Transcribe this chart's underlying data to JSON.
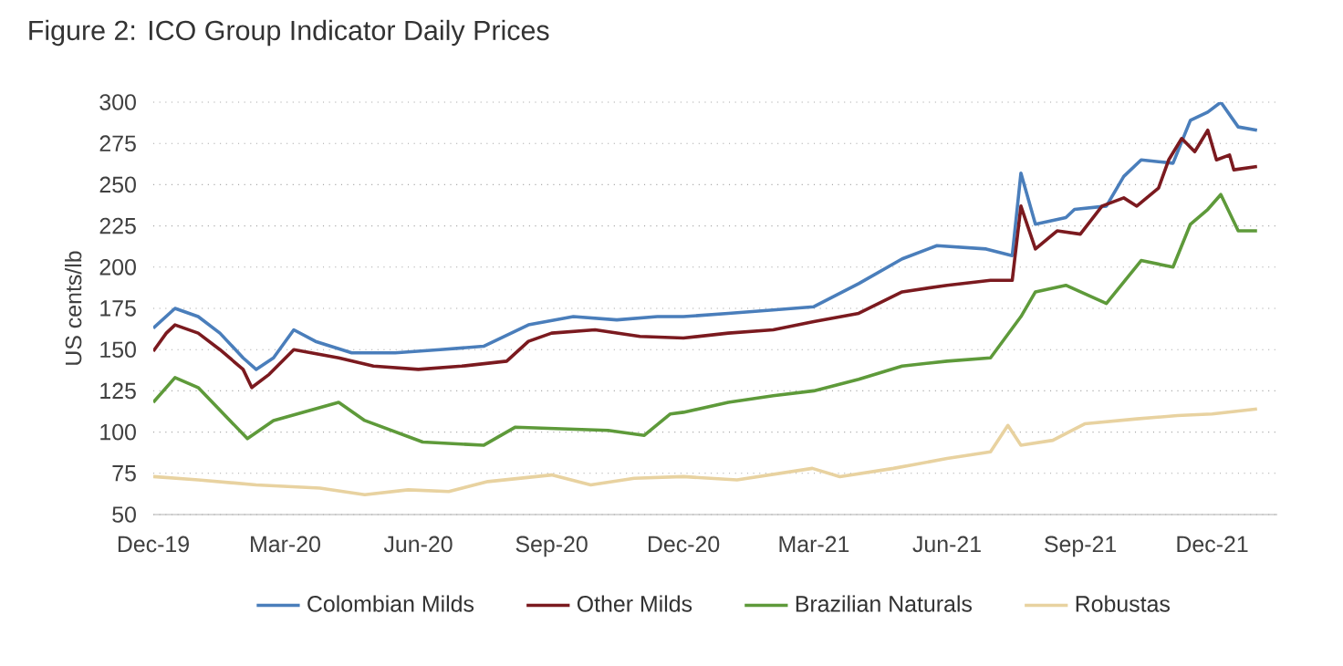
{
  "chart_data": {
    "type": "line",
    "title": "Figure 2: ICO Group Indicator Daily Prices",
    "ylabel": "US cents/lb",
    "xlim": [
      "2019-12-01",
      "2022-01-15"
    ],
    "ylim": [
      50,
      300
    ],
    "yticks": [
      50,
      75,
      100,
      125,
      150,
      175,
      200,
      225,
      250,
      275,
      300
    ],
    "xticks": [
      {
        "value": "2019-12-01",
        "label": "Dec-19"
      },
      {
        "value": "2020-03-01",
        "label": "Mar-20"
      },
      {
        "value": "2020-06-01",
        "label": "Jun-20"
      },
      {
        "value": "2020-09-01",
        "label": "Sep-20"
      },
      {
        "value": "2020-12-01",
        "label": "Dec-20"
      },
      {
        "value": "2021-03-01",
        "label": "Mar-21"
      },
      {
        "value": "2021-06-01",
        "label": "Jun-21"
      },
      {
        "value": "2021-09-01",
        "label": "Sep-21"
      },
      {
        "value": "2021-12-01",
        "label": "Dec-21"
      }
    ],
    "grid": "y",
    "legend": "bottom",
    "marker": "none",
    "line_style": "solid",
    "series": [
      {
        "name": "Colombian Milds",
        "color": "#4a7ebb",
        "x": [
          "2019-12-01",
          "2019-12-16",
          "2020-01-01",
          "2020-01-16",
          "2020-02-01",
          "2020-02-10",
          "2020-02-22",
          "2020-03-07",
          "2020-03-22",
          "2020-04-16",
          "2020-05-16",
          "2020-06-16",
          "2020-07-16",
          "2020-08-16",
          "2020-09-16",
          "2020-10-16",
          "2020-11-13",
          "2020-12-01",
          "2021-01-01",
          "2021-02-01",
          "2021-03-01",
          "2021-04-01",
          "2021-05-01",
          "2021-05-25",
          "2021-06-28",
          "2021-07-16",
          "2021-07-22",
          "2021-08-01",
          "2021-08-22",
          "2021-08-28",
          "2021-09-19",
          "2021-10-01",
          "2021-10-13",
          "2021-11-04",
          "2021-11-16",
          "2021-11-28",
          "2021-12-07",
          "2021-12-19",
          "2022-01-01"
        ],
        "values": [
          163,
          175,
          170,
          160,
          145,
          138,
          145,
          162,
          155,
          148,
          148,
          150,
          152,
          165,
          170,
          168,
          170,
          170,
          172,
          174,
          176,
          190,
          205,
          213,
          211,
          207,
          257,
          226,
          230,
          235,
          237,
          255,
          265,
          263,
          289,
          294,
          300,
          285,
          283
        ]
      },
      {
        "name": "Other Milds",
        "color": "#7b1a1f",
        "x": [
          "2019-12-01",
          "2019-12-10",
          "2019-12-16",
          "2020-01-01",
          "2020-01-16",
          "2020-02-01",
          "2020-02-07",
          "2020-02-19",
          "2020-03-07",
          "2020-04-07",
          "2020-05-01",
          "2020-06-01",
          "2020-07-01",
          "2020-08-01",
          "2020-08-16",
          "2020-09-01",
          "2020-10-01",
          "2020-11-01",
          "2020-12-01",
          "2021-01-01",
          "2021-02-01",
          "2021-03-01",
          "2021-04-01",
          "2021-05-01",
          "2021-06-01",
          "2021-07-01",
          "2021-07-16",
          "2021-07-22",
          "2021-08-01",
          "2021-08-16",
          "2021-09-01",
          "2021-09-16",
          "2021-10-01",
          "2021-10-10",
          "2021-10-25",
          "2021-11-01",
          "2021-11-10",
          "2021-11-19",
          "2021-11-28",
          "2021-12-04",
          "2021-12-13",
          "2021-12-16",
          "2022-01-01"
        ],
        "values": [
          149,
          160,
          165,
          160,
          150,
          138,
          127,
          135,
          150,
          145,
          140,
          138,
          140,
          143,
          155,
          160,
          162,
          158,
          157,
          160,
          162,
          167,
          172,
          185,
          189,
          192,
          192,
          237,
          211,
          222,
          220,
          237,
          242,
          237,
          248,
          265,
          278,
          270,
          283,
          265,
          268,
          259,
          261
        ]
      },
      {
        "name": "Brazilian Naturals",
        "color": "#5e9a3a",
        "x": [
          "2019-12-01",
          "2019-12-16",
          "2020-01-01",
          "2020-02-04",
          "2020-02-22",
          "2020-04-07",
          "2020-04-25",
          "2020-06-04",
          "2020-07-16",
          "2020-08-07",
          "2020-10-10",
          "2020-11-04",
          "2020-11-22",
          "2020-12-01",
          "2021-01-01",
          "2021-02-01",
          "2021-03-01",
          "2021-04-01",
          "2021-05-01",
          "2021-06-01",
          "2021-07-01",
          "2021-07-22",
          "2021-08-01",
          "2021-08-22",
          "2021-09-19",
          "2021-10-13",
          "2021-11-04",
          "2021-11-16",
          "2021-11-28",
          "2021-12-07",
          "2021-12-19",
          "2022-01-01"
        ],
        "values": [
          118,
          133,
          127,
          96,
          107,
          118,
          107,
          94,
          92,
          103,
          101,
          98,
          111,
          112,
          118,
          122,
          125,
          132,
          140,
          143,
          145,
          170,
          185,
          189,
          178,
          204,
          200,
          226,
          235,
          244,
          222,
          222
        ]
      },
      {
        "name": "Robustas",
        "color": "#e8d2a0",
        "x": [
          "2019-12-01",
          "2020-01-01",
          "2020-02-10",
          "2020-03-25",
          "2020-04-25",
          "2020-05-25",
          "2020-06-22",
          "2020-07-19",
          "2020-09-01",
          "2020-09-28",
          "2020-10-28",
          "2020-12-01",
          "2021-01-07",
          "2021-02-28",
          "2021-03-19",
          "2021-04-25",
          "2021-06-01",
          "2021-07-01",
          "2021-07-13",
          "2021-07-22",
          "2021-08-13",
          "2021-09-04",
          "2021-10-10",
          "2021-11-07",
          "2021-12-01",
          "2022-01-01"
        ],
        "values": [
          73,
          71,
          68,
          66,
          62,
          65,
          64,
          70,
          74,
          68,
          72,
          73,
          71,
          78,
          73,
          78,
          84,
          88,
          104,
          92,
          95,
          105,
          108,
          110,
          111,
          114
        ]
      }
    ]
  }
}
